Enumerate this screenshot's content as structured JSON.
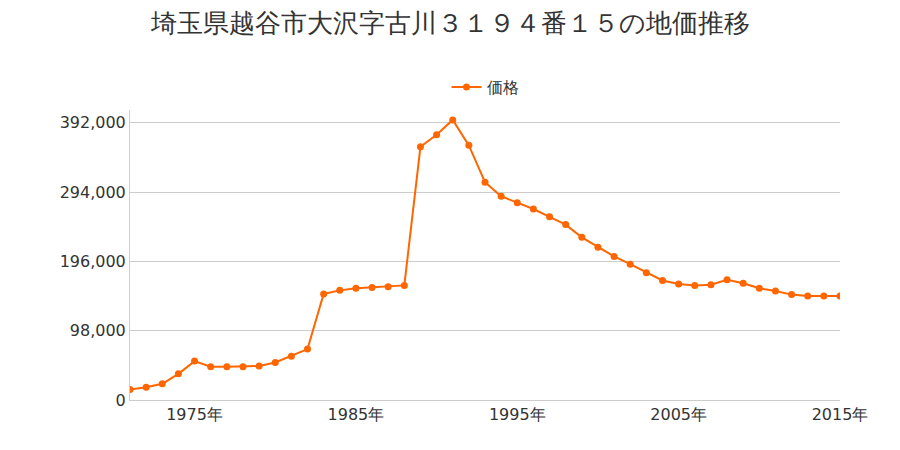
{
  "chart_data": {
    "type": "line",
    "title": "埼玉県越谷市大沢字古川３１９４番１５の地価推移",
    "x": [
      1971,
      1972,
      1973,
      1974,
      1975,
      1976,
      1977,
      1978,
      1979,
      1980,
      1981,
      1982,
      1983,
      1984,
      1985,
      1986,
      1987,
      1988,
      1989,
      1990,
      1991,
      1992,
      1993,
      1994,
      1995,
      1996,
      1997,
      1998,
      1999,
      2000,
      2001,
      2002,
      2003,
      2004,
      2005,
      2006,
      2007,
      2008,
      2009,
      2010,
      2011,
      2012,
      2013,
      2014,
      2015
    ],
    "series": [
      {
        "name": "価格",
        "color": "#ff6600",
        "marker": "circle",
        "values": [
          15000,
          18000,
          23000,
          37000,
          55000,
          47000,
          47000,
          47000,
          48000,
          53000,
          62000,
          72000,
          150000,
          155000,
          158000,
          159000,
          160000,
          162000,
          358000,
          375000,
          396000,
          360000,
          308000,
          288000,
          279000,
          270000,
          259000,
          248000,
          230000,
          216000,
          203000,
          192000,
          180000,
          169000,
          164000,
          162000,
          163000,
          170000,
          165000,
          158000,
          154000,
          149000,
          147000,
          147000,
          147000
        ]
      }
    ],
    "xlim": [
      1971,
      2015
    ],
    "xticks": [
      {
        "value": 1975,
        "label": "1975年"
      },
      {
        "value": 1985,
        "label": "1985年"
      },
      {
        "value": 1995,
        "label": "1995年"
      },
      {
        "value": 2005,
        "label": "2005年"
      },
      {
        "value": 2015,
        "label": "2015年"
      }
    ],
    "ylim": [
      0,
      410000
    ],
    "yticks": [
      0,
      {
        "value": 98000,
        "label": "98,000"
      },
      {
        "value": 196000,
        "label": "196,000"
      },
      {
        "value": 294000,
        "label": "294,000"
      },
      {
        "value": 392000,
        "label": "392,000"
      }
    ],
    "grid": true,
    "legend": "top"
  }
}
